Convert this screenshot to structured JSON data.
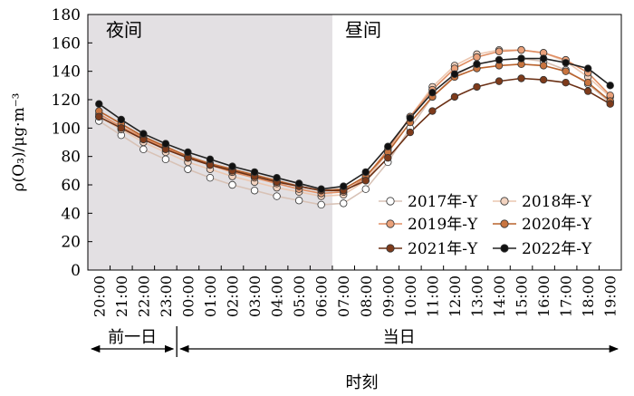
{
  "chart_data": {
    "type": "line",
    "ylabel": "ρ(O₃)/μg·m⁻³",
    "xlabel": "时刻",
    "ylim": [
      0,
      180
    ],
    "yticks": [
      0,
      20,
      40,
      60,
      80,
      100,
      120,
      140,
      160,
      180
    ],
    "regions": {
      "night": "夜间",
      "day": "昼间"
    },
    "day_groups": {
      "prev": "前一日",
      "curr": "当日"
    },
    "categories": [
      "20:00",
      "21:00",
      "22:00",
      "23:00",
      "00:00",
      "01:00",
      "02:00",
      "03:00",
      "04:00",
      "05:00",
      "06:00",
      "07:00",
      "08:00",
      "09:00",
      "10:00",
      "11:00",
      "12:00",
      "13:00",
      "14:00",
      "15:00",
      "16:00",
      "17:00",
      "18:00",
      "19:00"
    ],
    "night_count": 11,
    "legend_position": "bottom-right",
    "series": [
      {
        "name": "2017年-Y",
        "color": "#ffffff",
        "line": "#d8c2b6",
        "values": [
          105,
          95,
          85,
          78,
          71,
          65,
          60,
          56,
          52,
          49,
          46,
          47,
          57,
          76,
          100,
          122,
          137,
          145,
          148,
          149,
          147,
          141,
          131,
          118
        ]
      },
      {
        "name": "2018年-Y",
        "color": "#f2d3c0",
        "line": "#ecc7b0",
        "values": [
          108,
          99,
          90,
          83,
          76,
          71,
          66,
          62,
          58,
          55,
          52,
          53,
          63,
          83,
          108,
          129,
          144,
          152,
          155,
          155,
          153,
          147,
          136,
          122
        ]
      },
      {
        "name": "2019年-Y",
        "color": "#eaa17a",
        "line": "#e08e63",
        "values": [
          110,
          101,
          93,
          86,
          79,
          74,
          69,
          65,
          61,
          57,
          54,
          55,
          65,
          85,
          108,
          127,
          142,
          150,
          154,
          155,
          153,
          148,
          139,
          123
        ]
      },
      {
        "name": "2020年-Y",
        "color": "#c8743f",
        "line": "#b9622c",
        "values": [
          112,
          103,
          94,
          87,
          80,
          75,
          71,
          67,
          63,
          59,
          56,
          57,
          66,
          83,
          104,
          122,
          136,
          142,
          144,
          145,
          144,
          140,
          132,
          119
        ]
      },
      {
        "name": "2021年-Y",
        "color": "#7e3b1b",
        "line": "#6b3015",
        "values": [
          108,
          100,
          92,
          85,
          79,
          74,
          70,
          66,
          62,
          59,
          56,
          56,
          63,
          79,
          97,
          112,
          122,
          129,
          133,
          135,
          134,
          132,
          126,
          117
        ]
      },
      {
        "name": "2022年-Y",
        "color": "#111111",
        "line": "#222222",
        "values": [
          117,
          106,
          96,
          89,
          83,
          78,
          73,
          69,
          65,
          61,
          57,
          59,
          69,
          87,
          107,
          125,
          138,
          145,
          148,
          149,
          149,
          146,
          142,
          130
        ]
      }
    ]
  }
}
